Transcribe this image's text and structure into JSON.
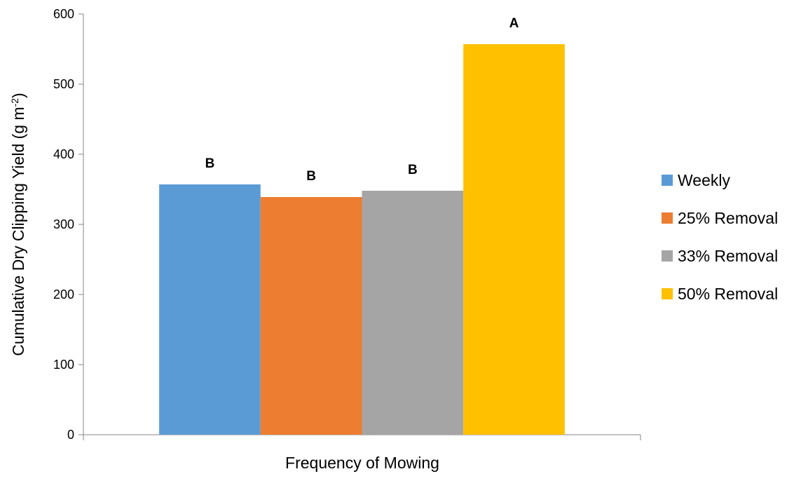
{
  "chart_data": {
    "type": "bar",
    "categories": [
      ""
    ],
    "series": [
      {
        "name": "Weekly",
        "values": [
          357
        ],
        "label": "B",
        "color": "#5B9BD5"
      },
      {
        "name": "25% Removal",
        "values": [
          339
        ],
        "label": "B",
        "color": "#ED7D31"
      },
      {
        "name": "33% Removal",
        "values": [
          348
        ],
        "label": "B",
        "color": "#A5A5A5"
      },
      {
        "name": "50% Removal",
        "values": [
          557
        ],
        "label": "A",
        "color": "#FFC000"
      }
    ],
    "xlabel": "Frequency of Mowing",
    "ylabel": "Cumulative Dry Clipping Yield (g m",
    "ylabel_superscript": "-2",
    "ylabel_suffix": ")",
    "ylim": [
      0,
      600
    ],
    "yticks": [
      0,
      100,
      200,
      300,
      400,
      500,
      600
    ],
    "grid": false,
    "legend_position": "right",
    "colors": {
      "axis": "#868686"
    }
  }
}
